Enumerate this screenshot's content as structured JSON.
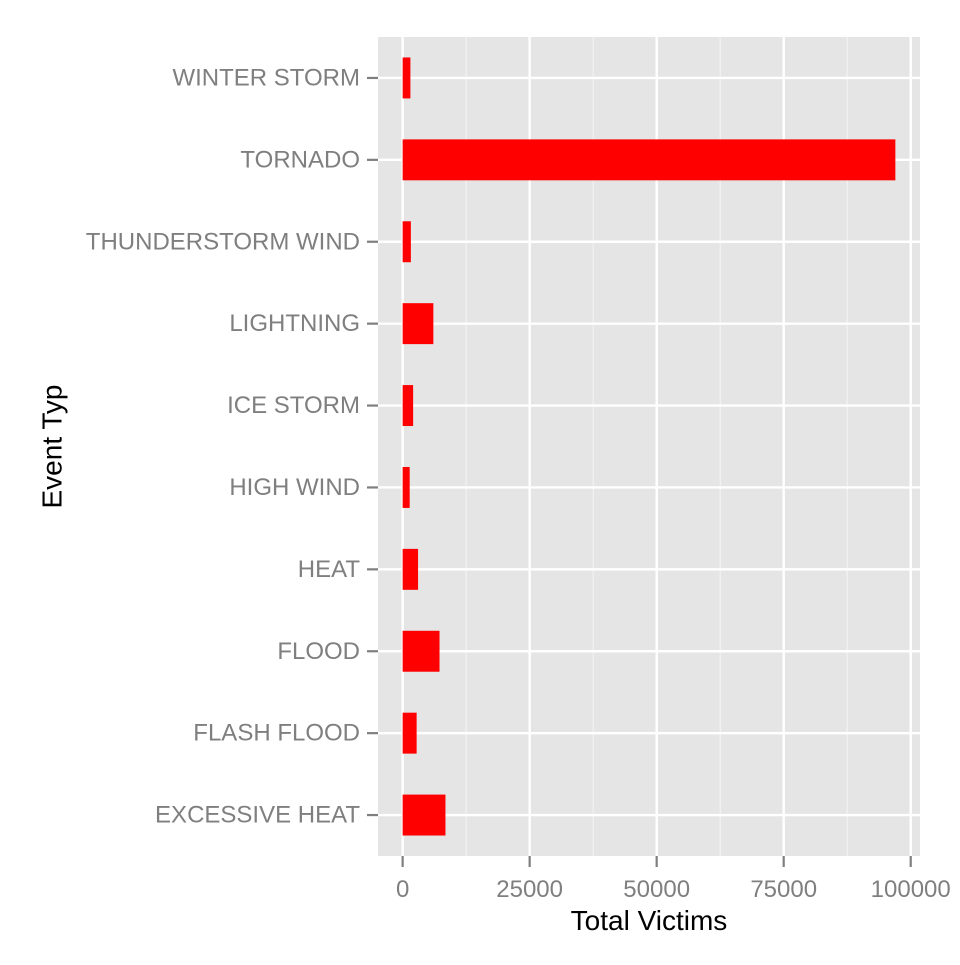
{
  "chart_data": {
    "type": "bar",
    "orientation": "horizontal",
    "categories": [
      "EXCESSIVE HEAT",
      "FLASH FLOOD",
      "FLOOD",
      "HEAT",
      "HIGH WIND",
      "ICE STORM",
      "LIGHTNING",
      "THUNDERSTORM WIND",
      "TORNADO",
      "WINTER STORM"
    ],
    "values": [
      8428,
      2755,
      7259,
      3037,
      1385,
      2064,
      6046,
      1621,
      96979,
      1527
    ],
    "xlabel": "Total Victims",
    "ylabel": "Event Typ",
    "xlim": [
      -4849,
      101828
    ],
    "x_ticks": [
      0,
      25000,
      50000,
      75000,
      100000
    ],
    "x_tick_labels": [
      "0",
      "25000",
      "50000",
      "75000",
      "100000"
    ],
    "grid": true,
    "legend": "none",
    "colors": {
      "bar": "#ff0000",
      "panel_background": "#e5e5e5",
      "grid_major": "#ffffff",
      "grid_minor": "#f2f2f2",
      "tick_text": "#7f7f7f",
      "title_text": "#000000"
    }
  }
}
